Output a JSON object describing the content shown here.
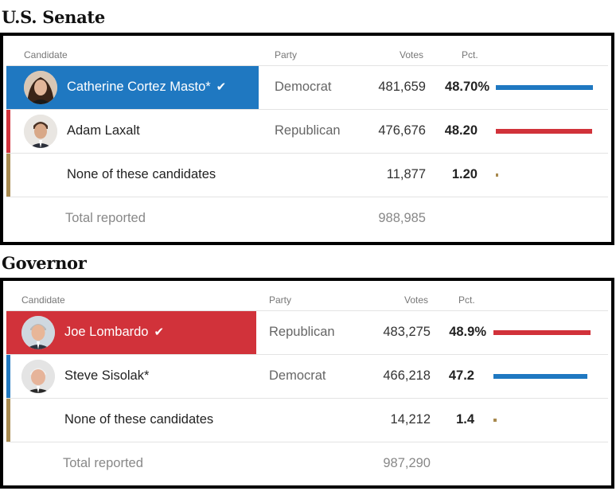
{
  "colors": {
    "democrat": "#1f78c1",
    "republican": "#d1323a",
    "other": "#a88a4f"
  },
  "headers": {
    "candidate": "Candidate",
    "party": "Party",
    "votes": "Votes",
    "pct": "Pct."
  },
  "senate": {
    "title": "U.S. Senate",
    "candidates": [
      {
        "name": "Catherine Cortez Masto*",
        "party": "Democrat",
        "votes": "481,659",
        "pct": "48.70%",
        "pct_value": 48.7,
        "winner": true,
        "color": "#1f78c1",
        "icon": "check-icon"
      },
      {
        "name": "Adam Laxalt",
        "party": "Republican",
        "votes": "476,676",
        "pct": "48.20",
        "pct_value": 48.2,
        "winner": false,
        "color": "#d1323a"
      },
      {
        "name": "None of these candidates",
        "party": "",
        "votes": "11,877",
        "pct": "1.20",
        "pct_value": 1.2,
        "winner": false,
        "color": "#a88a4f"
      }
    ],
    "total_label": "Total reported",
    "total_votes": "988,985"
  },
  "governor": {
    "title": "Governor",
    "candidates": [
      {
        "name": "Joe Lombardo",
        "party": "Republican",
        "votes": "483,275",
        "pct": "48.9%",
        "pct_value": 48.9,
        "winner": true,
        "color": "#d1323a",
        "icon": "check-icon"
      },
      {
        "name": "Steve Sisolak*",
        "party": "Democrat",
        "votes": "466,218",
        "pct": "47.2",
        "pct_value": 47.2,
        "winner": false,
        "color": "#1f78c1"
      },
      {
        "name": "None of these candidates",
        "party": "",
        "votes": "14,212",
        "pct": "1.4",
        "pct_value": 1.4,
        "winner": false,
        "color": "#a88a4f"
      }
    ],
    "total_label": "Total reported",
    "total_votes": "987,290"
  }
}
